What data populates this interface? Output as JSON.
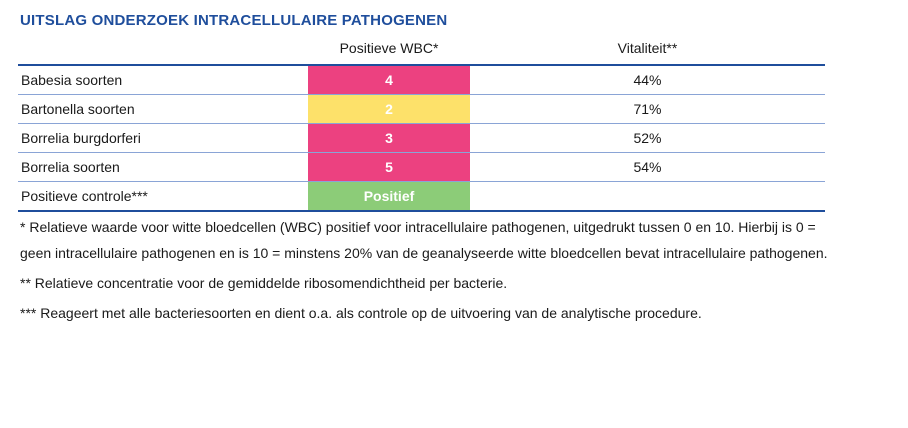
{
  "title": "UITSLAG ONDERZOEK INTRACELLULAIRE PATHOGENEN",
  "headers": {
    "wbc": "Positieve WBC*",
    "vitality": "Vitaliteit**"
  },
  "rows": [
    {
      "name": "Babesia soorten",
      "wbc": "4",
      "vitality": "44%",
      "color": "#ec4180"
    },
    {
      "name": "Bartonella soorten",
      "wbc": "2",
      "vitality": "71%",
      "color": "#fde16a"
    },
    {
      "name": "Borrelia burgdorferi",
      "wbc": "3",
      "vitality": "52%",
      "color": "#ec4180"
    },
    {
      "name": "Borrelia soorten",
      "wbc": "5",
      "vitality": "54%",
      "color": "#ec4180"
    },
    {
      "name": "Positieve controle***",
      "wbc": "Positief",
      "vitality": "",
      "color": "#8ccc78"
    }
  ],
  "notes": {
    "n1": "* Relatieve waarde voor witte bloedcellen (WBC) positief voor intracellulaire pathogenen, uitgedrukt tussen 0 en 10. Hierbij is 0 = geen intracellulaire pathogenen en is 10 = minstens 20% van de geanalyseerde witte bloedcellen bevat intracellulaire pathogenen.",
    "n2": "** Relatieve concentratie voor de gemiddelde ribosomendichtheid per bacterie.",
    "n3": "*** Reageert met alle bacteriesoorten en dient o.a. als controle op de uitvoering van de analytische procedure."
  }
}
